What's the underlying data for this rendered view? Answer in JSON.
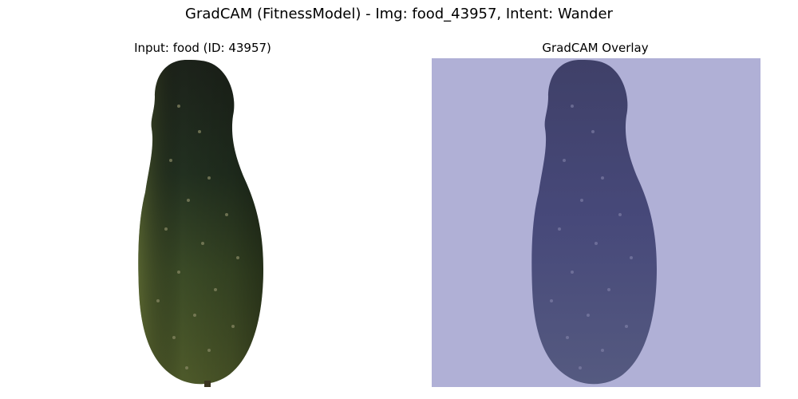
{
  "figure": {
    "title": "GradCAM (FitnessModel) - Img: food_43957, Intent: Wander"
  },
  "panels": {
    "input": {
      "title": "Input: food (ID: 43957)"
    },
    "overlay": {
      "title": "GradCAM Overlay",
      "overlay_color": "#b0b0d6"
    }
  },
  "colors": {
    "cucumber_dark": "#1f2a1c",
    "cucumber_mid": "#2f3f24",
    "cucumber_light": "#55622e",
    "speckle": "#7a7a5a",
    "overlay_background": "#b0b0d6",
    "overlay_cucumber": "#4a4f78"
  }
}
